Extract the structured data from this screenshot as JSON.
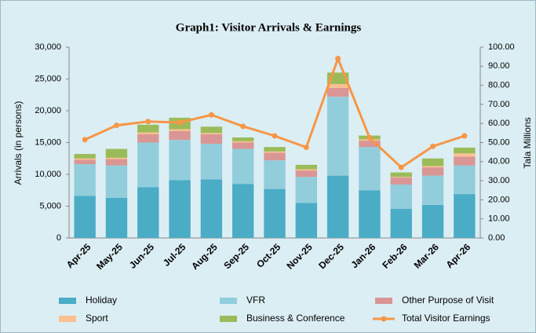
{
  "chart_data": {
    "type": "bar",
    "stacked": true,
    "title": "Graph1: Visitor Arrivals & Earnings",
    "y_label": "Arrivals (in persons)",
    "y2_label": "Tala Millions",
    "categories": [
      "Apr-25",
      "May-25",
      "Jun-25",
      "Jul-25",
      "Aug-25",
      "Sep-25",
      "Oct-25",
      "Nov-25",
      "Dec-25",
      "Jan-26",
      "Feb-26",
      "Mar-26",
      "Apr-26"
    ],
    "series": [
      {
        "name": "Holiday",
        "color": "#4bacc6",
        "values": [
          6600,
          6300,
          8000,
          9100,
          9200,
          8500,
          7700,
          5500,
          9800,
          7500,
          4600,
          5200,
          6900
        ]
      },
      {
        "name": "VFR",
        "color": "#92cddc",
        "values": [
          5000,
          5100,
          7000,
          6300,
          5600,
          5500,
          4500,
          4100,
          12400,
          6800,
          3800,
          4600,
          4500
        ]
      },
      {
        "name": "Other Purpose of Visit",
        "color": "#da9694",
        "values": [
          700,
          1000,
          1300,
          1400,
          1500,
          1000,
          1200,
          1000,
          1400,
          1000,
          1100,
          1300,
          1400
        ]
      },
      {
        "name": "Sport",
        "color": "#fac090",
        "values": [
          200,
          200,
          300,
          300,
          200,
          200,
          200,
          200,
          600,
          200,
          100,
          200,
          500
        ]
      },
      {
        "name": "Business & Conference",
        "color": "#9bbb59",
        "values": [
          700,
          1400,
          1200,
          1800,
          1000,
          600,
          700,
          700,
          1800,
          600,
          700,
          1200,
          900
        ]
      },
      {
        "name": "Total Visitor Earnings",
        "color": "#f79646",
        "type": "line",
        "axis": "y2",
        "values": [
          51.5,
          59,
          61,
          60.5,
          64.5,
          58.5,
          53.5,
          47.5,
          94,
          52.5,
          37,
          48,
          53.5
        ]
      }
    ],
    "ylim": [
      0,
      30000
    ],
    "yticks": [
      0,
      {
        "value": 5000,
        "label": "5,000"
      },
      {
        "value": 10000,
        "label": "10,000"
      },
      {
        "value": 15000,
        "label": "15,000"
      },
      {
        "value": 20000,
        "label": "20,000"
      },
      {
        "value": 25000,
        "label": "25,000"
      },
      {
        "value": 30000,
        "label": "30,000"
      }
    ],
    "y2lim": [
      0,
      100
    ],
    "y2ticks": [
      {
        "value": 0,
        "label": "0.00"
      },
      {
        "value": 10,
        "label": "10.00"
      },
      {
        "value": 20,
        "label": "20.00"
      },
      {
        "value": 30,
        "label": "30.00"
      },
      {
        "value": 40,
        "label": "40.00"
      },
      {
        "value": 50,
        "label": "50.00"
      },
      {
        "value": 60,
        "label": "60.00"
      },
      {
        "value": 70,
        "label": "70.00"
      },
      {
        "value": 80,
        "label": "80.00"
      },
      {
        "value": 90,
        "label": "90.00"
      },
      {
        "value": 100,
        "label": "100.00"
      }
    ],
    "legend": "bottom"
  }
}
